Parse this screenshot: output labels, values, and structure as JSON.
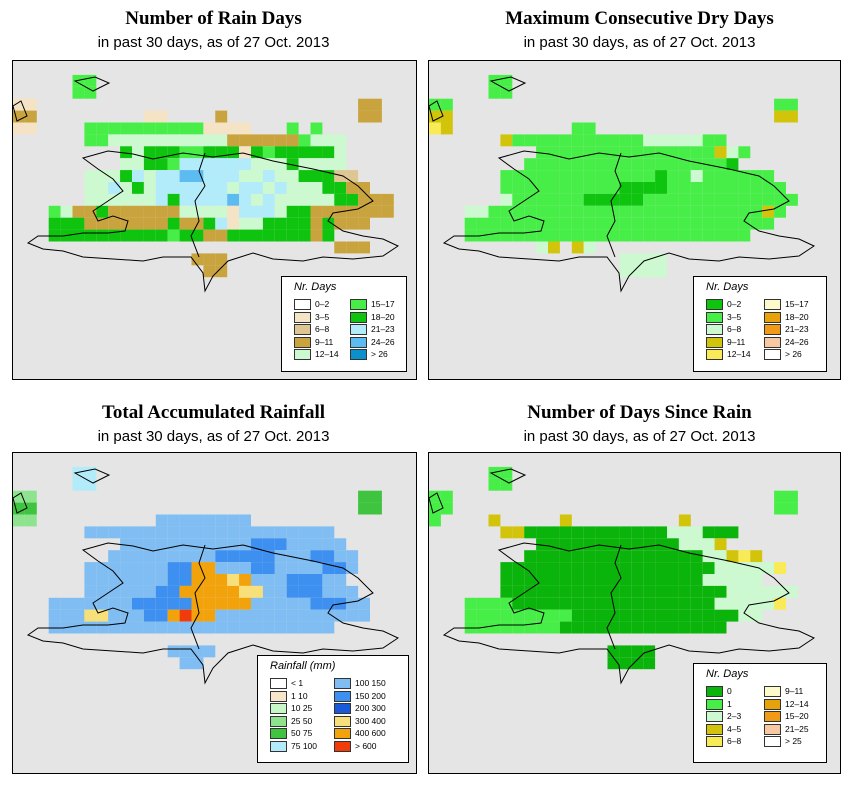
{
  "panels": [
    {
      "id": "rain-days",
      "title": "Number of Rain Days",
      "subtitle": "in past 30 days, as of  27 Oct. 2013",
      "legend": {
        "title": "Nr. Days",
        "left_col": [
          {
            "label": "0–2",
            "color": "#ffffff"
          },
          {
            "label": "3–5",
            "color": "#f5e3c6"
          },
          {
            "label": "6–8",
            "color": "#ddc691"
          },
          {
            "label": "9–11",
            "color": "#c9a33d"
          },
          {
            "label": "12–14",
            "color": "#cdf9d0"
          }
        ],
        "right_col": [
          {
            "label": "15–17",
            "color": "#48ee48"
          },
          {
            "label": "18–20",
            "color": "#0ec40e"
          },
          {
            "label": "21–23",
            "color": "#b2ebf9"
          },
          {
            "label": "24–26",
            "color": "#5cbcf2"
          },
          {
            "label": "> 26",
            "color": "#0a90cc"
          }
        ]
      }
    },
    {
      "id": "dry-days",
      "title": "Maximum Consecutive Dry Days",
      "subtitle": "in past 30 days, as of  27 Oct. 2013",
      "legend": {
        "title": "Nr. Days",
        "left_col": [
          {
            "label": "0–2",
            "color": "#0ec40e"
          },
          {
            "label": "3–5",
            "color": "#48ee48"
          },
          {
            "label": "6–8",
            "color": "#cdf9d0"
          },
          {
            "label": "9–11",
            "color": "#d2c40a"
          },
          {
            "label": "12–14",
            "color": "#f9ea57"
          }
        ],
        "right_col": [
          {
            "label": "15–17",
            "color": "#fcfacb"
          },
          {
            "label": "18–20",
            "color": "#e7a10a"
          },
          {
            "label": "21–23",
            "color": "#f09a18"
          },
          {
            "label": "24–26",
            "color": "#f7c8a1"
          },
          {
            "label": "> 26",
            "color": "#ffffff"
          }
        ]
      }
    },
    {
      "id": "rainfall",
      "title": "Total Accumulated Rainfall",
      "subtitle": "in past 30 days, as of  27 Oct. 2013",
      "legend": {
        "title": "Rainfall (mm)",
        "left_col": [
          {
            "label": "< 1",
            "color": "#ffffff"
          },
          {
            "label": "1    10",
            "color": "#f7e5c9"
          },
          {
            "label": "10    25",
            "color": "#c7f7c7"
          },
          {
            "label": "25    50",
            "color": "#8ee38e"
          },
          {
            "label": "50    75",
            "color": "#3fc43f"
          },
          {
            "label": "75  100",
            "color": "#b2ebf9"
          }
        ],
        "right_col": [
          {
            "label": "100  150",
            "color": "#7fbdf2"
          },
          {
            "label": "150  200",
            "color": "#3d8ff0"
          },
          {
            "label": "200  300",
            "color": "#1a5ad8"
          },
          {
            "label": "300  400",
            "color": "#f7e07a"
          },
          {
            "label": "400  600",
            "color": "#f2a20a"
          },
          {
            "label": "> 600",
            "color": "#f03c0a"
          }
        ]
      }
    },
    {
      "id": "days-since-rain",
      "title": "Number of Days Since Rain",
      "subtitle": "in past 30 days, as of  27 Oct. 2013",
      "legend": {
        "title": "Nr. Days",
        "left_col": [
          {
            "label": "0",
            "color": "#0ab40a"
          },
          {
            "label": "1",
            "color": "#48ee48"
          },
          {
            "label": "2–3",
            "color": "#cdf9d0"
          },
          {
            "label": "4–5",
            "color": "#d2c40a"
          },
          {
            "label": "6–8",
            "color": "#f9ea57"
          }
        ],
        "right_col": [
          {
            "label": "9–11",
            "color": "#fcfacb"
          },
          {
            "label": "12–14",
            "color": "#e7a10a"
          },
          {
            "label": "15–20",
            "color": "#f09a18"
          },
          {
            "label": "21–25",
            "color": "#f7c8a1"
          },
          {
            "label": "> 25",
            "color": "#ffffff"
          }
        ]
      }
    }
  ],
  "grids": {
    "rain-days": [
      "..................................",
      ".....11...........................",
      ".....11...........................",
      "EE...........................DD...",
      "DD.........EE....D...........DD...",
      "EE....1111111111AAAA...1.1........",
      "......113333333333DDDDDD1333......",
      ".........2322211222A21222223......",
      ".........3322144444433323333......",
      "......333243445544433433222FF.....",
      "......3343234444443443433322DD....",
      "......33333342444454343333322CCC..",
      "...13CC2CCCCCC3333E444322CCCCCDD..",
      "...222DDDDCCC2CC24E332222D2CCC....",
      "...2222222222122DC2222222D2.......",
      "...........................CCC....",
      "...............DCD................",
      "................DD................",
      "....................................",
      "....................................",
      "...................................."
    ],
    "dry-days": [
      "..................................",
      ".....22...........................",
      ".....22...........................",
      "22...........................22...",
      "4D...........................44...",
      "54..........22...................",
      "......4222222222223333322.........",
      ".........222222222222222D32.......",
      "........222222222222222221.......",
      "......22222222222221223222222.....",
      "......222222222211112222222222...",
      "......3222222111112222222222222..",
      "...3322222222222222222222222D2...",
      "...22222222222222222222222222....",
      "...222222222222222222222222......",
      ".........3D.D3...................",
      "................3333..............",
      "................3333..............",
      "....................................",
      "....................................",
      "...................................."
    ],
    "rainfall": [
      "..................................",
      ".....QQ...........................",
      ".....QQ...........................",
      "EE...........................DD...",
      "DD...........................DD...",
      "EE..........BBBBBBBB..............",
      "......BBBBBBBBBBBBBBBBBBBBB......",
      ".........BBBBBBBBBBBCCCBBBBB......",
      "........BBBBBBBBBCCCCCBBBCCBB.....",
      "......BBBBBBBCCKKBBBCCBBBBCCB.....",
      "......BBBBBBBCCKKKJKBBBCCCBB.....",
      "......BBBBBBCCKKKKKJJBBCCCBBB.....",
      "...BBBBBBBCCCCCKKKKKBBBBBCCCBB....",
      "...BBBJJBBBCCKLKKBBBBBBBBBBBBB....",
      "...BBBBBBBBBBBBBBBBBBBBBBBB.......",
      "...............................",
      ".............BBBB.................",
      "..............BB..................",
      "....................................",
      "....................................",
      "...................................."
    ],
    "days-since-rain": [
      "..................................",
      ".....11...........................",
      ".....11...........................",
      "11...........................11...",
      "11...........................11...",
      "1....4.....4.........4.......",
      "......44000000000000222000.......",
      ".........0000000000002224.......",
      "........00000000000000022434.....",
      "......000000000000000000222223....",
      "......0000000000000000022222...",
      "......0000000000000000000222222...",
      "...111100000000000000000222223....",
      "...1111111110000000000000022......",
      "...1111111100000000000000.........",
      "...............................",
      "...............0000...............",
      "...............0000...............",
      "....................................",
      "....................................",
      "...................................."
    ]
  }
}
